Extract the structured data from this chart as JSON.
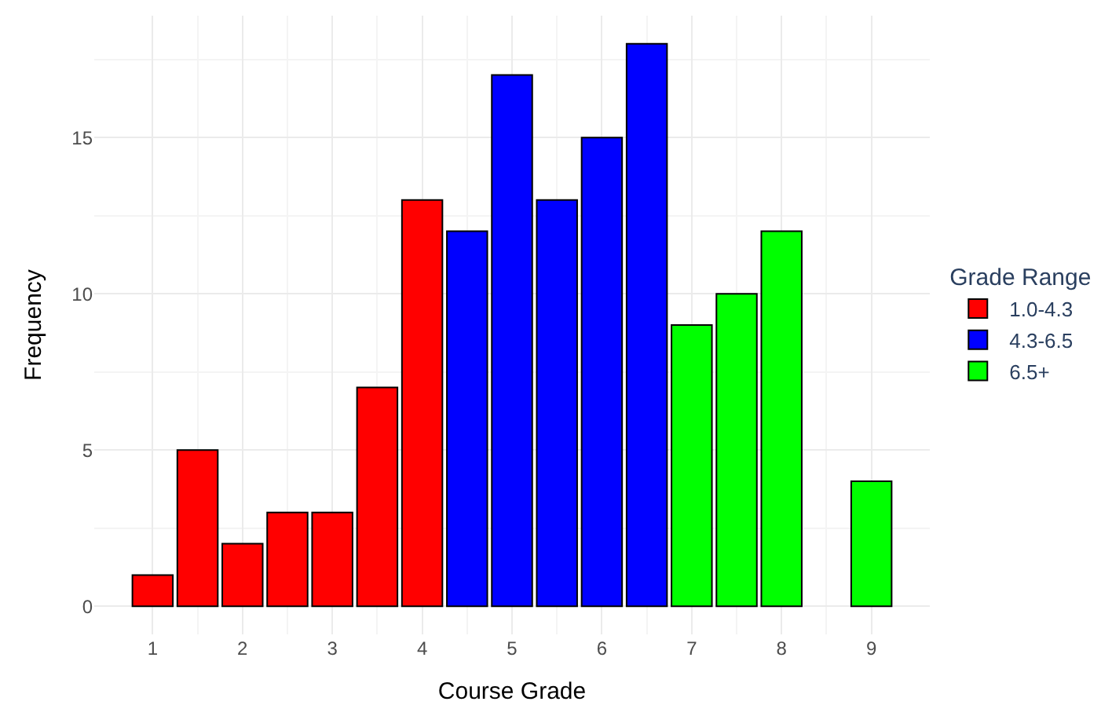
{
  "chart_data": {
    "type": "bar",
    "xlabel": "Course Grade",
    "ylabel": "Frequency",
    "legend_title": "Grade Range",
    "series": [
      {
        "name": "1.0-4.3",
        "color": "#ff0000",
        "x": [
          1,
          1.5,
          2,
          2.5,
          3,
          3.5,
          4
        ],
        "values": [
          1,
          5,
          2,
          3,
          3,
          7,
          13
        ]
      },
      {
        "name": "4.3-6.5",
        "color": "#0000ff",
        "x": [
          4.5,
          5,
          5.5,
          6,
          6.5
        ],
        "values": [
          12,
          17,
          13,
          15,
          18
        ]
      },
      {
        "name": "6.5+",
        "color": "#00ff00",
        "x": [
          7,
          7.5,
          8,
          9
        ],
        "values": [
          9,
          10,
          12,
          4
        ]
      }
    ],
    "xlim": [
      0.35,
      9.65
    ],
    "xticks": [
      1,
      2,
      3,
      4,
      5,
      6,
      7,
      8,
      9
    ],
    "ylim": [
      -0.9,
      18.9
    ],
    "yticks": [
      0,
      5,
      10,
      15
    ],
    "grid": true,
    "legend": "right"
  }
}
